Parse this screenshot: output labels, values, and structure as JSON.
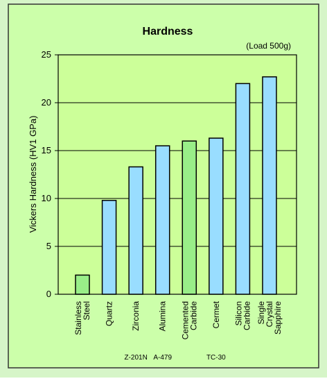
{
  "chart_data": {
    "type": "bar",
    "title": "Hardness",
    "subtitle": "(Load 500g)",
    "y_label": "Vickers Hardness (HV1 GPa)",
    "categories": [
      [
        "Stainless",
        "Steel"
      ],
      [
        "Quartz"
      ],
      [
        "Zirconia"
      ],
      [
        "Alumina"
      ],
      [
        "Cemented",
        "Carbide"
      ],
      [
        "Cermet"
      ],
      [
        "Silicon",
        "Carbide"
      ],
      [
        "Single",
        "Crystal",
        "Sapphire"
      ]
    ],
    "sublabels": [
      null,
      null,
      "Z-201N",
      "A-479",
      null,
      "TC-30",
      null,
      null
    ],
    "values": [
      2.0,
      9.8,
      13.3,
      15.5,
      16.0,
      16.3,
      22.0,
      22.7
    ],
    "colors": [
      "#99ee88",
      "#99ddff",
      "#99ddff",
      "#99ddff",
      "#99ee88",
      "#99ddff",
      "#99ddff",
      "#99ddff"
    ],
    "ylim": [
      0,
      25
    ],
    "yticks": [
      0,
      5,
      10,
      15,
      20,
      25
    ],
    "grid": true
  }
}
